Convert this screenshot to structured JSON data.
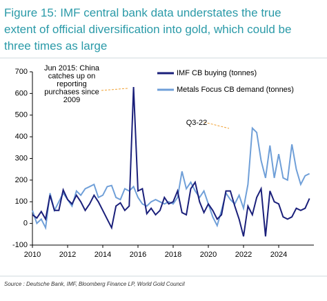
{
  "chart_data": {
    "type": "line",
    "title_lines": [
      "Figure 15: IMF central bank data understates the true",
      "extent of official diversification into gold, which could be",
      "three times as large"
    ],
    "source": "Source : Deutsche Bank, IMF, Bloomberg Finance LP, World Gold Council",
    "annotations": [
      {
        "lines": [
          "Jun 2015: China",
          "catches up on",
          "reporting",
          "purchases since",
          "2009"
        ]
      },
      {
        "lines": [
          "Q3-22"
        ]
      }
    ],
    "x": [
      2010,
      2010.25,
      2010.5,
      2010.75,
      2011,
      2011.25,
      2011.5,
      2011.75,
      2012,
      2012.25,
      2012.5,
      2012.75,
      2013,
      2013.25,
      2013.5,
      2013.75,
      2014,
      2014.25,
      2014.5,
      2014.75,
      2015,
      2015.25,
      2015.5,
      2015.75,
      2016,
      2016.25,
      2016.5,
      2016.75,
      2017,
      2017.25,
      2017.5,
      2017.75,
      2018,
      2018.25,
      2018.5,
      2018.75,
      2019,
      2019.25,
      2019.5,
      2019.75,
      2020,
      2020.25,
      2020.5,
      2020.75,
      2021,
      2021.25,
      2021.5,
      2021.75,
      2022,
      2022.25,
      2022.5,
      2022.75,
      2023,
      2023.25,
      2023.5,
      2023.75,
      2024,
      2024.25,
      2024.5,
      2024.75,
      2025,
      2025.25,
      2025.5,
      2025.75
    ],
    "series": [
      {
        "name": "IMF CB buying (tonnes)",
        "color": "#1a1f7a",
        "values": [
          40,
          25,
          55,
          20,
          130,
          60,
          60,
          155,
          110,
          90,
          130,
          100,
          60,
          90,
          130,
          100,
          60,
          20,
          -20,
          80,
          95,
          60,
          80,
          630,
          150,
          160,
          45,
          70,
          40,
          60,
          120,
          90,
          100,
          150,
          50,
          40,
          160,
          190,
          100,
          50,
          90,
          60,
          20,
          40,
          150,
          150,
          80,
          20,
          -60,
          80,
          40,
          120,
          160,
          -60,
          150,
          100,
          90,
          30,
          20,
          30,
          70,
          60,
          70,
          115
        ]
      },
      {
        "name": "Metals Focus CB demand (tonnes)",
        "color": "#6f9fd8",
        "values": [
          60,
          0,
          20,
          -20,
          140,
          60,
          100,
          140,
          110,
          80,
          150,
          130,
          160,
          170,
          180,
          120,
          130,
          170,
          175,
          120,
          110,
          160,
          150,
          170,
          120,
          90,
          80,
          100,
          110,
          100,
          90,
          100,
          90,
          120,
          240,
          160,
          190,
          150,
          120,
          150,
          90,
          30,
          -10,
          60,
          140,
          110,
          90,
          130,
          70,
          180,
          440,
          420,
          290,
          210,
          360,
          210,
          320,
          210,
          200,
          365,
          250,
          180,
          220,
          230
        ]
      }
    ],
    "xlim": [
      2010,
      2026
    ],
    "xticks": [
      2010,
      2012,
      2014,
      2016,
      2018,
      2020,
      2022,
      2024
    ],
    "ylim": [
      -100,
      700
    ],
    "yticks": [
      -100,
      0,
      100,
      200,
      300,
      400,
      500,
      600,
      700
    ],
    "grid": false
  }
}
